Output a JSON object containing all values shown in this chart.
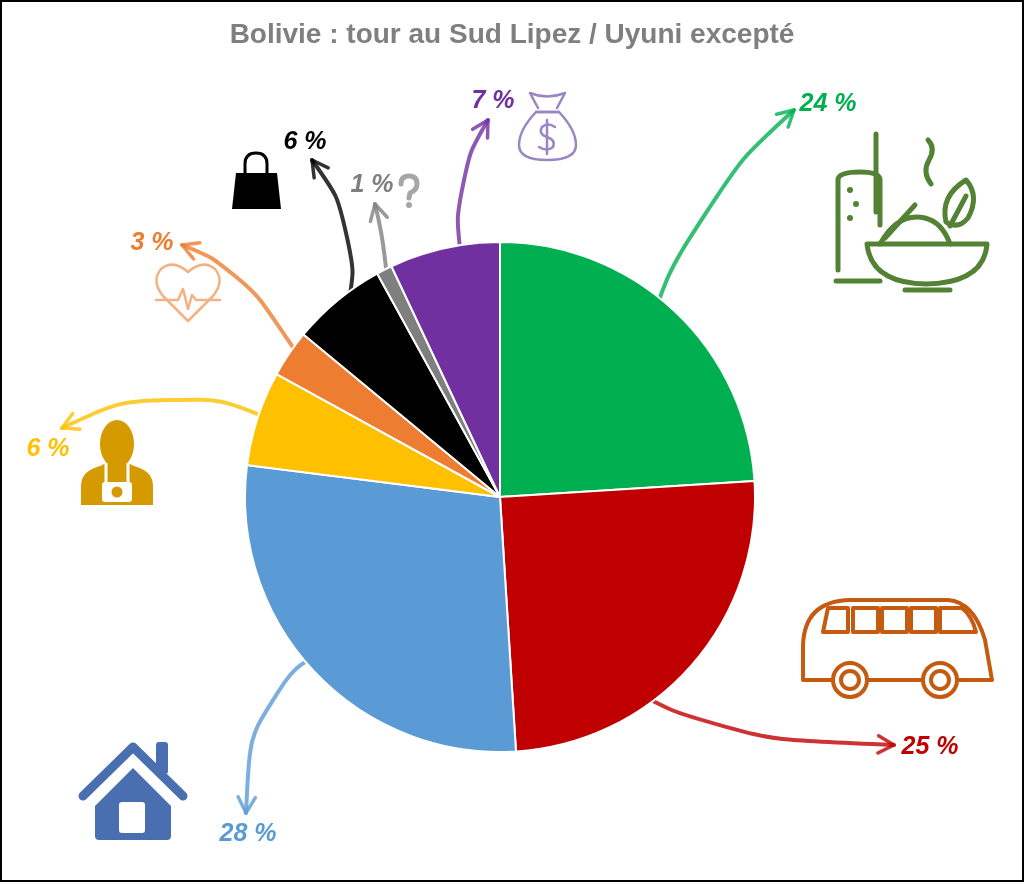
{
  "chart_data": {
    "type": "pie",
    "title": "Bolivie : tour au Sud Lipez / Uyuni excepté",
    "categories": [
      null,
      null,
      null,
      null,
      null,
      null,
      null,
      null
    ],
    "values": [
      24,
      25,
      28,
      6,
      3,
      6,
      1,
      7
    ],
    "colors": [
      "#00b050",
      "#c00000",
      "#5b9bd5",
      "#ffc000",
      "#ed7d31",
      "#000000",
      "#7f7f7f",
      "#7030a0"
    ],
    "value_labels": [
      "24 %",
      "25 %",
      "28 %",
      "6 %",
      "3 %",
      "6 %",
      "1 %",
      "7 %"
    ]
  }
}
